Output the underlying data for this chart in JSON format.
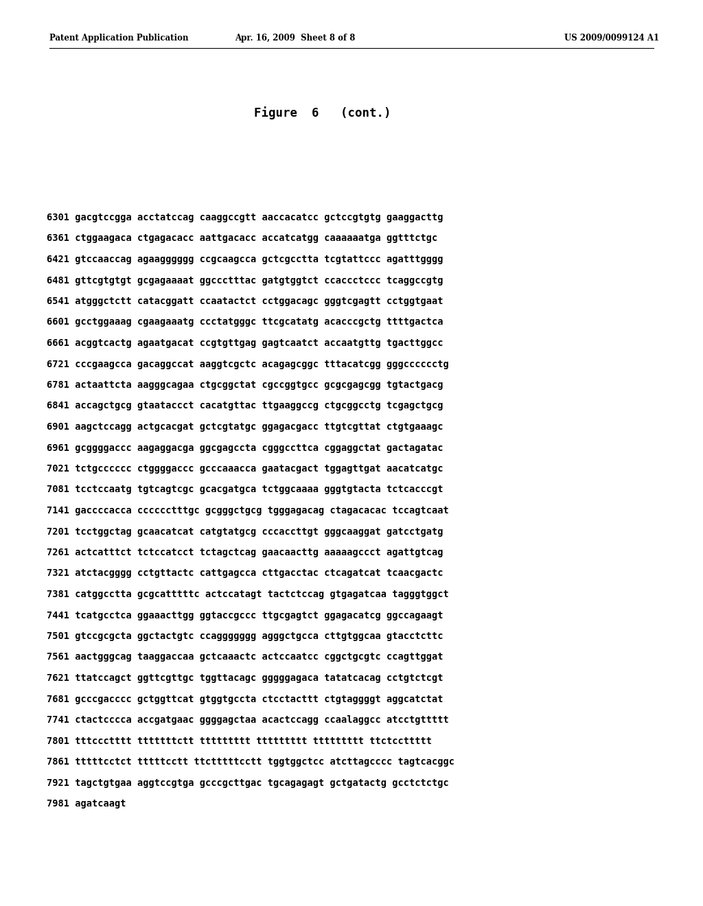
{
  "header_left": "Patent Application Publication",
  "header_middle": "Apr. 16, 2009  Sheet 8 of 8",
  "header_right": "US 2009/0099124 A1",
  "figure_title": "Figure  6   (cont.)",
  "sequences": [
    "6301 gacgtccgga acctatccag caaggccgtt aaccacatcc gctccgtgtg gaaggacttg",
    "6361 ctggaagaca ctgagacacc aattgacacc accatcatgg caaaaaatga ggtttctgc",
    "6421 gtccaaccag agaagggggg ccgcaagcca gctcgcctta tcgtattccc agatttgggg",
    "6481 gttcgtgtgt gcgagaaaat ggccctttac gatgtggtct ccaccctccc tcaggccgtg",
    "6541 atgggctctt catacggatt ccaatactct cctggacagc gggtcgagtt cctggtgaat",
    "6601 gcctggaaag cgaagaaatg ccctatgggc ttcgcatatg acacccgctg ttttgactca",
    "6661 acggtcactg agaatgacat ccgtgttgag gagtcaatct accaatgttg tgacttggcc",
    "6721 cccgaagcca gacaggccat aaggtcgctc acagagcggc tttacatcgg gggcccccctg",
    "6781 actaattcta aagggcagaa ctgcggctat cgccggtgcc gcgcgagcgg tgtactgacg",
    "6841 accagctgcg gtaataccct cacatgttac ttgaaggccg ctgcggcctg tcgagctgcg",
    "6901 aagctccagg actgcacgat gctcgtatgc ggagacgacc ttgtcgttat ctgtgaaagc",
    "6961 gcggggaccc aagaggacga ggcgagccta cgggccttca cggaggctat gactagatac",
    "7021 tctgcccccc ctggggaccc gcccaaacca gaatacgact tggagttgat aacatcatgc",
    "7081 tcctccaatg tgtcagtcgc gcacgatgca tctggcaaaa gggtgtacta tctcacccgt",
    "7141 gaccccacca cccccctttgc gcgggctgcg tgggagacag ctagacacac tccagtcaat",
    "7201 tcctggctag gcaacatcat catgtatgcg cccaccttgt gggcaaggat gatcctgatg",
    "7261 actcatttct tctccatcct tctagctcag gaacaacttg aaaaagccct agattgtcag",
    "7321 atctacgggg cctgttactc cattgagcca cttgacctac ctcagatcat tcaacgactc",
    "7381 catggcctta gcgcatttttc actccatagt tactctccag gtgagatcaa tagggtggct",
    "7441 tcatgcctca ggaaacttgg ggtaccgccc ttgcgagtct ggagacatcg ggccagaagt",
    "7501 gtccgcgcta ggctactgtc ccaggggggg agggctgcca cttgtggcaa gtacctcttc",
    "7561 aactgggcag taaggaccaa gctcaaactc actccaatcc cggctgcgtc ccagttggat",
    "7621 ttatccagct ggttcgttgc tggttacagc gggggagaca tatatcacag cctgtctcgt",
    "7681 gcccgacccc gctggttcat gtggtgccta ctcctacttt ctgtaggggt aggcatctat",
    "7741 ctactcccca accgatgaac ggggagctaa acactccagg ccaalaggcc atcctgttttt",
    "7801 tttccctttt tttttttctt ttttttttt ttttttttt ttttttttt ttctccttttt",
    "7861 tttttcctct tttttcctt ttctttttcctt tggtggctcc atcttagcccc tagtcacggc",
    "7921 tagctgtgaa aggtccgtga gcccgcttgac tgcagagagt gctgatactg gcctctctgc",
    "7981 agatcaagt"
  ],
  "bg_color": "#ffffff",
  "text_color": "#000000",
  "header_font_size": 8.5,
  "title_font_size": 12.5,
  "seq_font_size": 9.8,
  "page_width": 10.24,
  "page_height": 13.2,
  "dpi": 100
}
